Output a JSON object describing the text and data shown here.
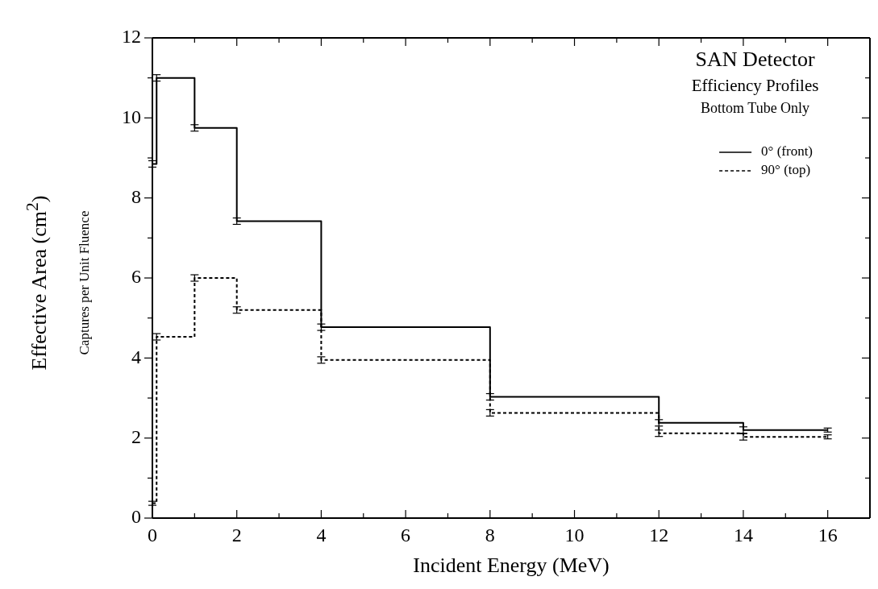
{
  "chart_data": {
    "type": "step",
    "title": "SAN Detector",
    "subtitle": "Efficiency Profiles",
    "annotations": [
      "Bottom Tube Only",
      "Captures per Unit Fluence"
    ],
    "xlabel": "Incident Energy (MeV)",
    "ylabel": "Effective Area (cm$^{2}$)",
    "series": [
      {
        "name": "0° (front)",
        "color": "#000000",
        "line_style": "solid",
        "x": [
          0,
          0.1,
          1,
          2,
          4,
          8,
          12,
          14,
          16
        ],
        "values": [
          8.85,
          11.0,
          9.75,
          7.42,
          4.77,
          3.03,
          2.38,
          2.2,
          2.2
        ],
        "errors": [
          0.08,
          0.08,
          0.08,
          0.08,
          0.08,
          0.08,
          0.08,
          0.08,
          0.05
        ]
      },
      {
        "name": "90° (top)",
        "color": "#000000",
        "line_style": "dashed",
        "x": [
          0,
          0.1,
          1,
          2,
          4,
          8,
          12,
          14,
          16
        ],
        "values": [
          0.37,
          4.53,
          6.0,
          5.2,
          3.95,
          2.63,
          2.12,
          2.03,
          2.03
        ],
        "errors": [
          0.05,
          0.08,
          0.08,
          0.08,
          0.08,
          0.08,
          0.08,
          0.08,
          0.05
        ]
      }
    ],
    "xlim": [
      0,
      17
    ],
    "xticks": [
      0,
      {
        "value": 1,
        "label": null
      },
      2,
      {
        "value": 3,
        "label": null
      },
      4,
      {
        "value": 5,
        "label": null
      },
      6,
      {
        "value": 7,
        "label": null
      },
      8,
      {
        "value": 9,
        "label": null
      },
      10,
      {
        "value": 11,
        "label": null
      },
      12,
      {
        "value": 13,
        "label": null
      },
      14,
      {
        "value": 15,
        "label": null
      },
      16
    ],
    "ylim": [
      0,
      12
    ],
    "yticks": [
      0,
      {
        "value": 1,
        "label": null
      },
      2,
      {
        "value": 3,
        "label": null
      },
      4,
      {
        "value": 5,
        "label": null
      },
      6,
      {
        "value": 7,
        "label": null
      },
      8,
      {
        "value": 9,
        "label": null
      },
      10,
      {
        "value": 11,
        "label": null
      },
      12
    ],
    "grid": false,
    "legend": "top right",
    "marker": "none"
  }
}
